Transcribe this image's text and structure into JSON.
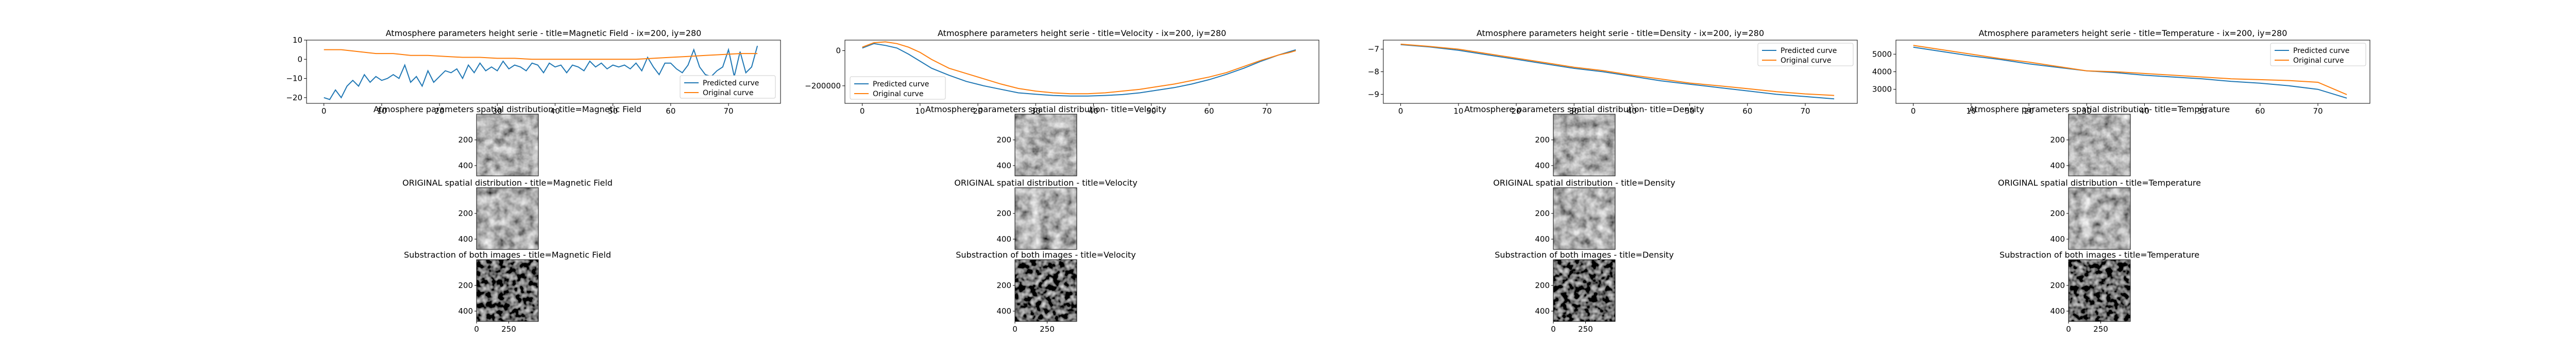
{
  "colors": {
    "predicted": "#1f77b4",
    "original": "#ff7f0e",
    "axis": "#000000"
  },
  "panels": [
    {
      "id": "magnetic",
      "line_title": "Atmosphere parameters height serie - title=Magnetic Field - ix=200, iy=280",
      "predicted_title": "Atmosphere parameters spatial distribution- title=Magnetic Field",
      "original_title": "ORIGINAL spatial distribution - title=Magnetic Field",
      "diff_title": "Substraction of both images - title=Magnetic Field"
    },
    {
      "id": "velocity",
      "line_title": "Atmosphere parameters height serie - title=Velocity - ix=200, iy=280",
      "predicted_title": "Atmosphere parameters spatial distribution- title=Velocity",
      "original_title": "ORIGINAL spatial distribution - title=Velocity",
      "diff_title": "Substraction of both images - title=Velocity"
    },
    {
      "id": "density",
      "line_title": "Atmosphere parameters height serie - title=Density - ix=200, iy=280",
      "predicted_title": "Atmosphere parameters spatial distribution- title=Density",
      "original_title": "ORIGINAL spatial distribution - title=Density",
      "diff_title": "Substraction of both images - title=Density"
    },
    {
      "id": "temperature",
      "line_title": "Atmosphere parameters height serie - title=Temperature - ix=200, iy=280",
      "predicted_title": "Atmosphere parameters spatial distribution- title=Temperature",
      "original_title": "ORIGINAL spatial distribution - title=Temperature",
      "diff_title": "Substraction of both images - title=Temperature"
    }
  ],
  "image_axes": {
    "y_ticks": [
      {
        "value": 200,
        "label": "200"
      },
      {
        "value": 400,
        "label": "400"
      }
    ],
    "x_ticks": [
      {
        "value": 0,
        "label": "0"
      },
      {
        "value": 250,
        "label": "250"
      }
    ],
    "extent": [
      0,
      480
    ]
  },
  "chart_data": [
    {
      "type": "line",
      "title": "Atmosphere parameters height serie - title=Magnetic Field - ix=200, iy=280",
      "legend_position": "right",
      "xlim": [
        -3,
        79
      ],
      "ylim": [
        -23,
        10
      ],
      "x_ticks": [
        0,
        10,
        20,
        30,
        40,
        50,
        60,
        70
      ],
      "y_ticks": [
        10,
        0,
        -10,
        -20
      ],
      "series": [
        {
          "name": "Predicted curve",
          "x": [
            0,
            1,
            2,
            3,
            4,
            5,
            6,
            7,
            8,
            9,
            10,
            11,
            12,
            13,
            14,
            15,
            16,
            17,
            18,
            19,
            20,
            21,
            22,
            23,
            24,
            25,
            26,
            27,
            28,
            29,
            30,
            31,
            32,
            33,
            34,
            35,
            36,
            37,
            38,
            39,
            40,
            41,
            42,
            43,
            44,
            45,
            46,
            47,
            48,
            49,
            50,
            51,
            52,
            53,
            54,
            55,
            56,
            57,
            58,
            59,
            60,
            61,
            62,
            63,
            64,
            65,
            66,
            67,
            68,
            69,
            70,
            71,
            72,
            73,
            74,
            75
          ],
          "values": [
            -20,
            -21,
            -16,
            -20,
            -14,
            -11,
            -14,
            -8,
            -12,
            -9,
            -11,
            -10,
            -8,
            -10,
            -3,
            -12,
            -9,
            -14,
            -6,
            -12,
            -9,
            -6,
            -7,
            -5,
            -10,
            -3,
            -7,
            -2,
            -6,
            -4,
            -6,
            -1,
            -5,
            -3,
            -4,
            -6,
            -2,
            -3,
            -7,
            -2,
            -4,
            -3,
            -7,
            -3,
            -4,
            -6,
            -1,
            -4,
            -2,
            -5,
            -3,
            -4,
            -3,
            -5,
            -2,
            -6,
            1,
            -4,
            -8,
            -2,
            -2,
            -5,
            -7,
            -3,
            5,
            -4,
            -8,
            -9,
            -6,
            -4,
            5,
            -9,
            4,
            -7,
            -4,
            7
          ]
        },
        {
          "name": "Original curve",
          "x": [
            0,
            3,
            6,
            9,
            12,
            15,
            18,
            21,
            24,
            27,
            30,
            33,
            36,
            39,
            42,
            45,
            48,
            51,
            54,
            57,
            60,
            63,
            66,
            69,
            72,
            75
          ],
          "values": [
            5,
            5,
            4,
            3,
            3,
            2,
            2,
            1.5,
            1,
            1,
            0.5,
            0.5,
            0,
            0,
            0,
            0,
            0,
            0,
            0,
            0.5,
            1,
            1.5,
            2,
            2.5,
            3,
            3
          ]
        }
      ]
    },
    {
      "type": "line",
      "title": "Atmosphere parameters height serie - title=Velocity - ix=200, iy=280",
      "legend_position": "left",
      "xlim": [
        -3,
        79
      ],
      "ylim": [
        -300000,
        60000
      ],
      "x_ticks": [
        0,
        10,
        20,
        30,
        40,
        50,
        60,
        70
      ],
      "y_ticks": [
        0,
        -200000
      ],
      "series": [
        {
          "name": "Predicted curve",
          "x": [
            0,
            2,
            4,
            6,
            8,
            10,
            12,
            15,
            18,
            21,
            24,
            27,
            30,
            33,
            36,
            39,
            42,
            45,
            48,
            51,
            54,
            57,
            60,
            63,
            66,
            69,
            72,
            74,
            75
          ],
          "values": [
            15000,
            40000,
            30000,
            15000,
            -20000,
            -60000,
            -100000,
            -140000,
            -175000,
            -200000,
            -220000,
            -240000,
            -248000,
            -255000,
            -258000,
            -258000,
            -255000,
            -250000,
            -240000,
            -225000,
            -210000,
            -190000,
            -165000,
            -135000,
            -100000,
            -60000,
            -25000,
            -5000,
            5000
          ]
        },
        {
          "name": "Original curve",
          "x": [
            0,
            2,
            4,
            6,
            8,
            10,
            12,
            15,
            18,
            21,
            24,
            27,
            30,
            33,
            36,
            39,
            42,
            45,
            48,
            51,
            54,
            57,
            60,
            63,
            66,
            69,
            72,
            74,
            75
          ],
          "values": [
            20000,
            45000,
            50000,
            40000,
            20000,
            -10000,
            -50000,
            -100000,
            -130000,
            -160000,
            -190000,
            -215000,
            -230000,
            -240000,
            -245000,
            -245000,
            -240000,
            -230000,
            -220000,
            -205000,
            -190000,
            -170000,
            -150000,
            -125000,
            -90000,
            -55000,
            -25000,
            -10000,
            0
          ]
        }
      ]
    },
    {
      "type": "line",
      "title": "Atmosphere parameters height serie - title=Density - ix=200, iy=280",
      "legend_position": "top-right",
      "xlim": [
        -3,
        79
      ],
      "ylim": [
        -9.4,
        -6.6
      ],
      "x_ticks": [
        0,
        10,
        20,
        30,
        40,
        50,
        60,
        70
      ],
      "y_ticks": [
        -7,
        -8,
        -9
      ],
      "series": [
        {
          "name": "Predicted curve",
          "x": [
            0,
            5,
            10,
            15,
            20,
            25,
            30,
            35,
            40,
            45,
            50,
            55,
            60,
            65,
            70,
            75
          ],
          "values": [
            -6.8,
            -6.9,
            -7.05,
            -7.25,
            -7.45,
            -7.65,
            -7.85,
            -8.0,
            -8.2,
            -8.4,
            -8.55,
            -8.7,
            -8.85,
            -9.0,
            -9.1,
            -9.2
          ]
        },
        {
          "name": "Original curve",
          "x": [
            0,
            5,
            10,
            15,
            20,
            25,
            30,
            35,
            40,
            45,
            50,
            55,
            60,
            65,
            70,
            75
          ],
          "values": [
            -6.78,
            -6.88,
            -7.0,
            -7.2,
            -7.4,
            -7.6,
            -7.8,
            -7.95,
            -8.15,
            -8.32,
            -8.5,
            -8.62,
            -8.75,
            -8.88,
            -8.98,
            -9.05
          ]
        }
      ]
    },
    {
      "type": "line",
      "title": "Atmosphere parameters height serie - title=Temperature - ix=200, iy=280",
      "legend_position": "top-right",
      "xlim": [
        -3,
        79
      ],
      "ylim": [
        2200,
        5800
      ],
      "x_ticks": [
        0,
        10,
        20,
        30,
        40,
        50,
        60,
        70
      ],
      "y_ticks": [
        5000,
        4000,
        3000
      ],
      "series": [
        {
          "name": "Predicted curve",
          "x": [
            0,
            5,
            10,
            15,
            20,
            25,
            30,
            35,
            40,
            45,
            50,
            55,
            60,
            65,
            70,
            75
          ],
          "values": [
            5400,
            5150,
            4900,
            4700,
            4450,
            4250,
            4050,
            3950,
            3800,
            3700,
            3600,
            3450,
            3350,
            3200,
            3000,
            2500
          ]
        },
        {
          "name": "Original curve",
          "x": [
            0,
            5,
            10,
            15,
            20,
            25,
            30,
            35,
            40,
            45,
            50,
            55,
            60,
            65,
            70,
            75
          ],
          "values": [
            5500,
            5250,
            5000,
            4750,
            4550,
            4300,
            4050,
            4000,
            3900,
            3800,
            3700,
            3600,
            3550,
            3500,
            3400,
            2700
          ]
        }
      ]
    }
  ]
}
